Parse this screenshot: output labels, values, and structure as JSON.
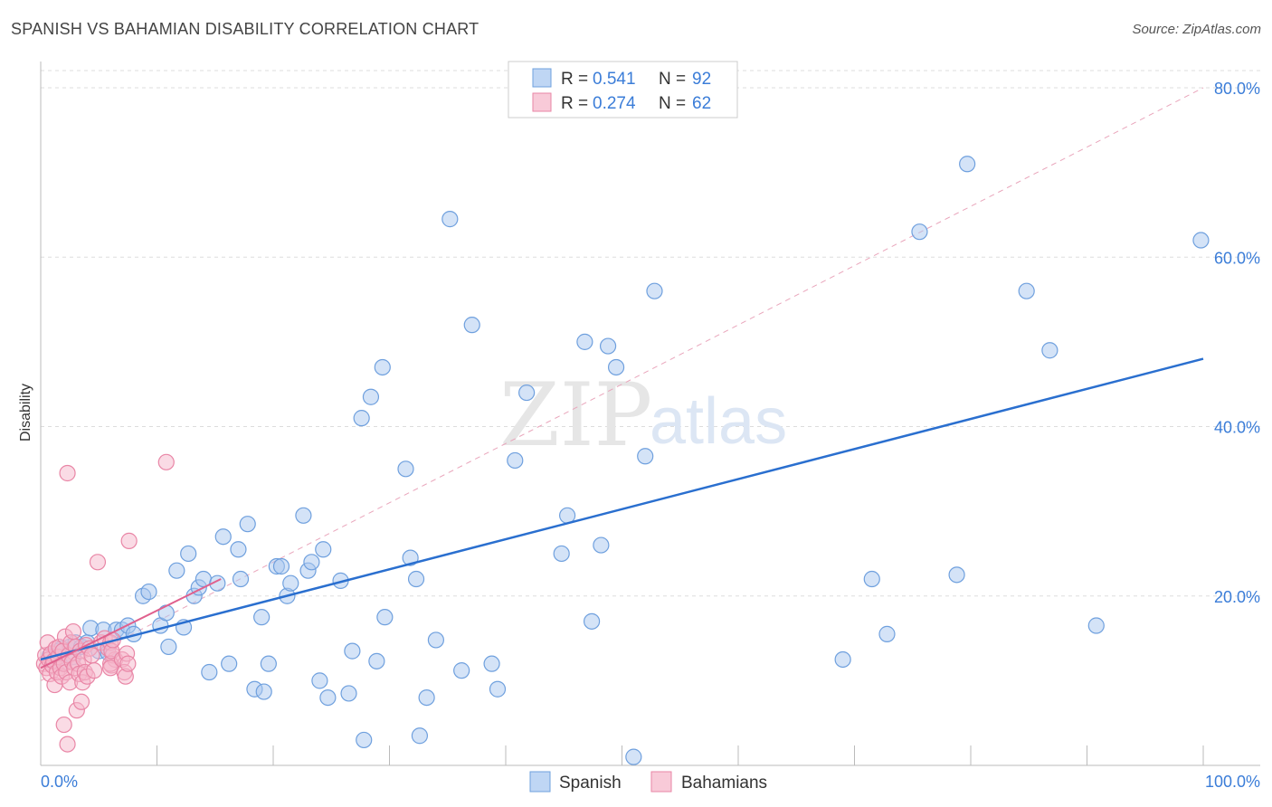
{
  "title": "SPANISH VS BAHAMIAN DISABILITY CORRELATION CHART",
  "source": "Source: ZipAtlas.com",
  "watermark": {
    "zip": "ZIP",
    "atlas": "atlas"
  },
  "colors": {
    "spanish_fill": "#a9c8f0",
    "spanish_stroke": "#6fa0de",
    "spanish_line": "#2a6fcf",
    "bahamian_fill": "#f6b8cb",
    "bahamian_stroke": "#e986a6",
    "bahamian_line": "#e0608d",
    "axis_label": "#3b7dd8",
    "grid": "#dddddd"
  },
  "legend": {
    "rows": [
      {
        "r_label": "R = ",
        "r_value": "0.541",
        "n_label": "N = ",
        "n_value": "92",
        "series": "spanish"
      },
      {
        "r_label": "R = ",
        "r_value": "0.274",
        "n_label": "N = ",
        "n_value": "62",
        "series": "bahamian"
      }
    ]
  },
  "chart_data": {
    "type": "scatter",
    "xlabel": "",
    "ylabel": "Disability",
    "xlim": [
      0,
      100
    ],
    "ylim": [
      0,
      80
    ],
    "x_tick_labels": [
      {
        "value": 0,
        "label": "0.0%"
      },
      {
        "value": 100,
        "label": "100.0%"
      }
    ],
    "y_tick_labels": [
      {
        "value": 20,
        "label": "20.0%"
      },
      {
        "value": 40,
        "label": "40.0%"
      },
      {
        "value": 60,
        "label": "60.0%"
      },
      {
        "value": 80,
        "label": "80.0%"
      }
    ],
    "legend_position": "top-center",
    "bottom_legend": [
      "Spanish",
      "Bahamians"
    ],
    "series": [
      {
        "name": "Spanish",
        "key": "spanish",
        "trend": {
          "x": [
            0,
            100
          ],
          "y": [
            12.5,
            48.0
          ]
        },
        "points": [
          [
            0.8,
            13.0
          ],
          [
            1.2,
            12.5
          ],
          [
            1.5,
            13.5
          ],
          [
            2.0,
            12.0
          ],
          [
            2.5,
            14.0
          ],
          [
            3.0,
            14.5
          ],
          [
            3.5,
            14.0
          ],
          [
            4.0,
            14.5
          ],
          [
            4.3,
            16.2
          ],
          [
            5.0,
            13.5
          ],
          [
            5.4,
            16.0
          ],
          [
            5.8,
            13.3
          ],
          [
            6.5,
            16.0
          ],
          [
            7.0,
            16.0
          ],
          [
            7.5,
            16.5
          ],
          [
            8.0,
            15.5
          ],
          [
            8.8,
            20.0
          ],
          [
            9.3,
            20.5
          ],
          [
            10.3,
            16.5
          ],
          [
            10.8,
            18.0
          ],
          [
            11.0,
            14.0
          ],
          [
            11.7,
            23.0
          ],
          [
            12.3,
            16.3
          ],
          [
            12.7,
            25.0
          ],
          [
            13.2,
            20.0
          ],
          [
            13.6,
            21.0
          ],
          [
            14.0,
            22.0
          ],
          [
            14.5,
            11.0
          ],
          [
            15.2,
            21.5
          ],
          [
            15.7,
            27.0
          ],
          [
            16.2,
            12.0
          ],
          [
            17.0,
            25.5
          ],
          [
            17.2,
            22.0
          ],
          [
            17.8,
            28.5
          ],
          [
            18.4,
            9.0
          ],
          [
            19.0,
            17.5
          ],
          [
            19.2,
            8.7
          ],
          [
            19.6,
            12.0
          ],
          [
            20.3,
            23.5
          ],
          [
            20.7,
            23.5
          ],
          [
            21.2,
            20.0
          ],
          [
            21.5,
            21.5
          ],
          [
            22.6,
            29.5
          ],
          [
            23.0,
            23.0
          ],
          [
            23.3,
            24.0
          ],
          [
            24.0,
            10.0
          ],
          [
            24.3,
            25.5
          ],
          [
            24.7,
            8.0
          ],
          [
            25.8,
            21.8
          ],
          [
            26.5,
            8.5
          ],
          [
            26.8,
            13.5
          ],
          [
            27.6,
            41.0
          ],
          [
            27.8,
            3.0
          ],
          [
            28.4,
            43.5
          ],
          [
            28.9,
            12.3
          ],
          [
            29.4,
            47.0
          ],
          [
            29.6,
            17.5
          ],
          [
            31.4,
            35.0
          ],
          [
            31.8,
            24.5
          ],
          [
            32.3,
            22.0
          ],
          [
            32.6,
            3.5
          ],
          [
            33.2,
            8.0
          ],
          [
            34.0,
            14.8
          ],
          [
            35.2,
            64.5
          ],
          [
            36.2,
            11.2
          ],
          [
            37.1,
            52.0
          ],
          [
            38.8,
            12.0
          ],
          [
            39.3,
            9.0
          ],
          [
            40.8,
            36.0
          ],
          [
            41.8,
            44.0
          ],
          [
            44.8,
            25.0
          ],
          [
            45.3,
            29.5
          ],
          [
            46.8,
            50.0
          ],
          [
            47.4,
            17.0
          ],
          [
            48.2,
            26.0
          ],
          [
            48.8,
            49.5
          ],
          [
            49.5,
            47.0
          ],
          [
            51.0,
            1.0
          ],
          [
            52.0,
            36.5
          ],
          [
            52.8,
            56.0
          ],
          [
            69.0,
            12.5
          ],
          [
            71.5,
            22.0
          ],
          [
            72.8,
            15.5
          ],
          [
            75.6,
            63.0
          ],
          [
            78.8,
            22.5
          ],
          [
            79.7,
            71.0
          ],
          [
            84.8,
            56.0
          ],
          [
            86.8,
            49.0
          ],
          [
            90.8,
            16.5
          ],
          [
            99.8,
            62.0
          ],
          [
            1.8,
            13.8
          ],
          [
            2.8,
            12.8
          ]
        ]
      },
      {
        "name": "Bahamians",
        "key": "bahamian",
        "trend": {
          "x": [
            0,
            15.5
          ],
          "y": [
            11.5,
            22.0
          ]
        },
        "points": [
          [
            0.3,
            12.0
          ],
          [
            0.4,
            13.0
          ],
          [
            0.5,
            11.5
          ],
          [
            0.6,
            14.5
          ],
          [
            0.7,
            12.5
          ],
          [
            0.8,
            10.8
          ],
          [
            0.9,
            13.2
          ],
          [
            1.0,
            11.8
          ],
          [
            1.1,
            12.3
          ],
          [
            1.2,
            9.5
          ],
          [
            1.3,
            13.8
          ],
          [
            1.4,
            11.0
          ],
          [
            1.5,
            12.8
          ],
          [
            1.6,
            14.0
          ],
          [
            1.7,
            11.5
          ],
          [
            1.8,
            10.5
          ],
          [
            1.9,
            13.5
          ],
          [
            2.0,
            12.0
          ],
          [
            2.1,
            15.2
          ],
          [
            2.2,
            11.0
          ],
          [
            2.3,
            34.5
          ],
          [
            2.4,
            13.0
          ],
          [
            2.5,
            9.8
          ],
          [
            2.6,
            14.5
          ],
          [
            2.7,
            12.2
          ],
          [
            2.8,
            15.8
          ],
          [
            2.9,
            11.5
          ],
          [
            3.0,
            14.0
          ],
          [
            3.1,
            6.5
          ],
          [
            3.2,
            12.0
          ],
          [
            3.3,
            10.8
          ],
          [
            3.4,
            13.5
          ],
          [
            3.5,
            7.5
          ],
          [
            3.6,
            9.8
          ],
          [
            3.7,
            12.5
          ],
          [
            3.8,
            11.0
          ],
          [
            3.9,
            14.2
          ],
          [
            4.0,
            10.5
          ],
          [
            4.2,
            13.8
          ],
          [
            4.4,
            13.0
          ],
          [
            4.6,
            11.2
          ],
          [
            4.9,
            24.0
          ],
          [
            5.2,
            14.5
          ],
          [
            5.5,
            15.0
          ],
          [
            5.8,
            13.8
          ],
          [
            6.1,
            11.8
          ],
          [
            6.4,
            12.5
          ],
          [
            6.0,
            14.5
          ],
          [
            6.2,
            13.0
          ],
          [
            6.0,
            12.0
          ],
          [
            6.1,
            13.5
          ],
          [
            6.0,
            11.5
          ],
          [
            6.2,
            14.8
          ],
          [
            7.6,
            26.5
          ],
          [
            7.0,
            12.5
          ],
          [
            7.2,
            11.0
          ],
          [
            7.4,
            13.2
          ],
          [
            7.3,
            10.5
          ],
          [
            7.5,
            12.0
          ],
          [
            10.8,
            35.8
          ],
          [
            2.0,
            4.8
          ],
          [
            2.3,
            2.5
          ]
        ]
      }
    ]
  }
}
